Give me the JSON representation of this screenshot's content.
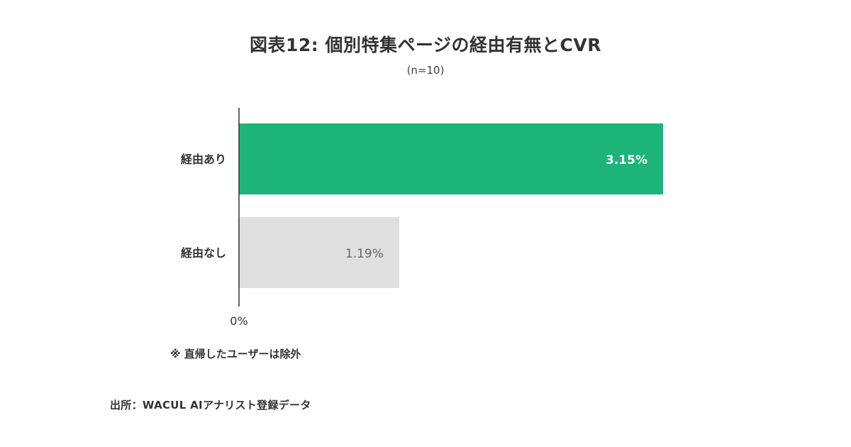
{
  "title": "図表12: 個別特集ページの経由有無とCVR",
  "subtitle": "(n=10)",
  "note": "※ 直帰したユーザーは除外",
  "source": "出所：WACUL AIアナリスト登録データ",
  "colors": {
    "primary": "#1db47a",
    "secondary": "#e0e0e0",
    "axis": "#333333"
  },
  "chart_data": {
    "type": "bar",
    "orientation": "horizontal",
    "categories": [
      "経由あり",
      "経由なし"
    ],
    "values": [
      3.15,
      1.19
    ],
    "value_labels": [
      "3.15%",
      "1.19%"
    ],
    "x_tick_labels": [
      "0%"
    ],
    "xlim": [
      0,
      3.3
    ],
    "grid": false,
    "legend": "none"
  }
}
